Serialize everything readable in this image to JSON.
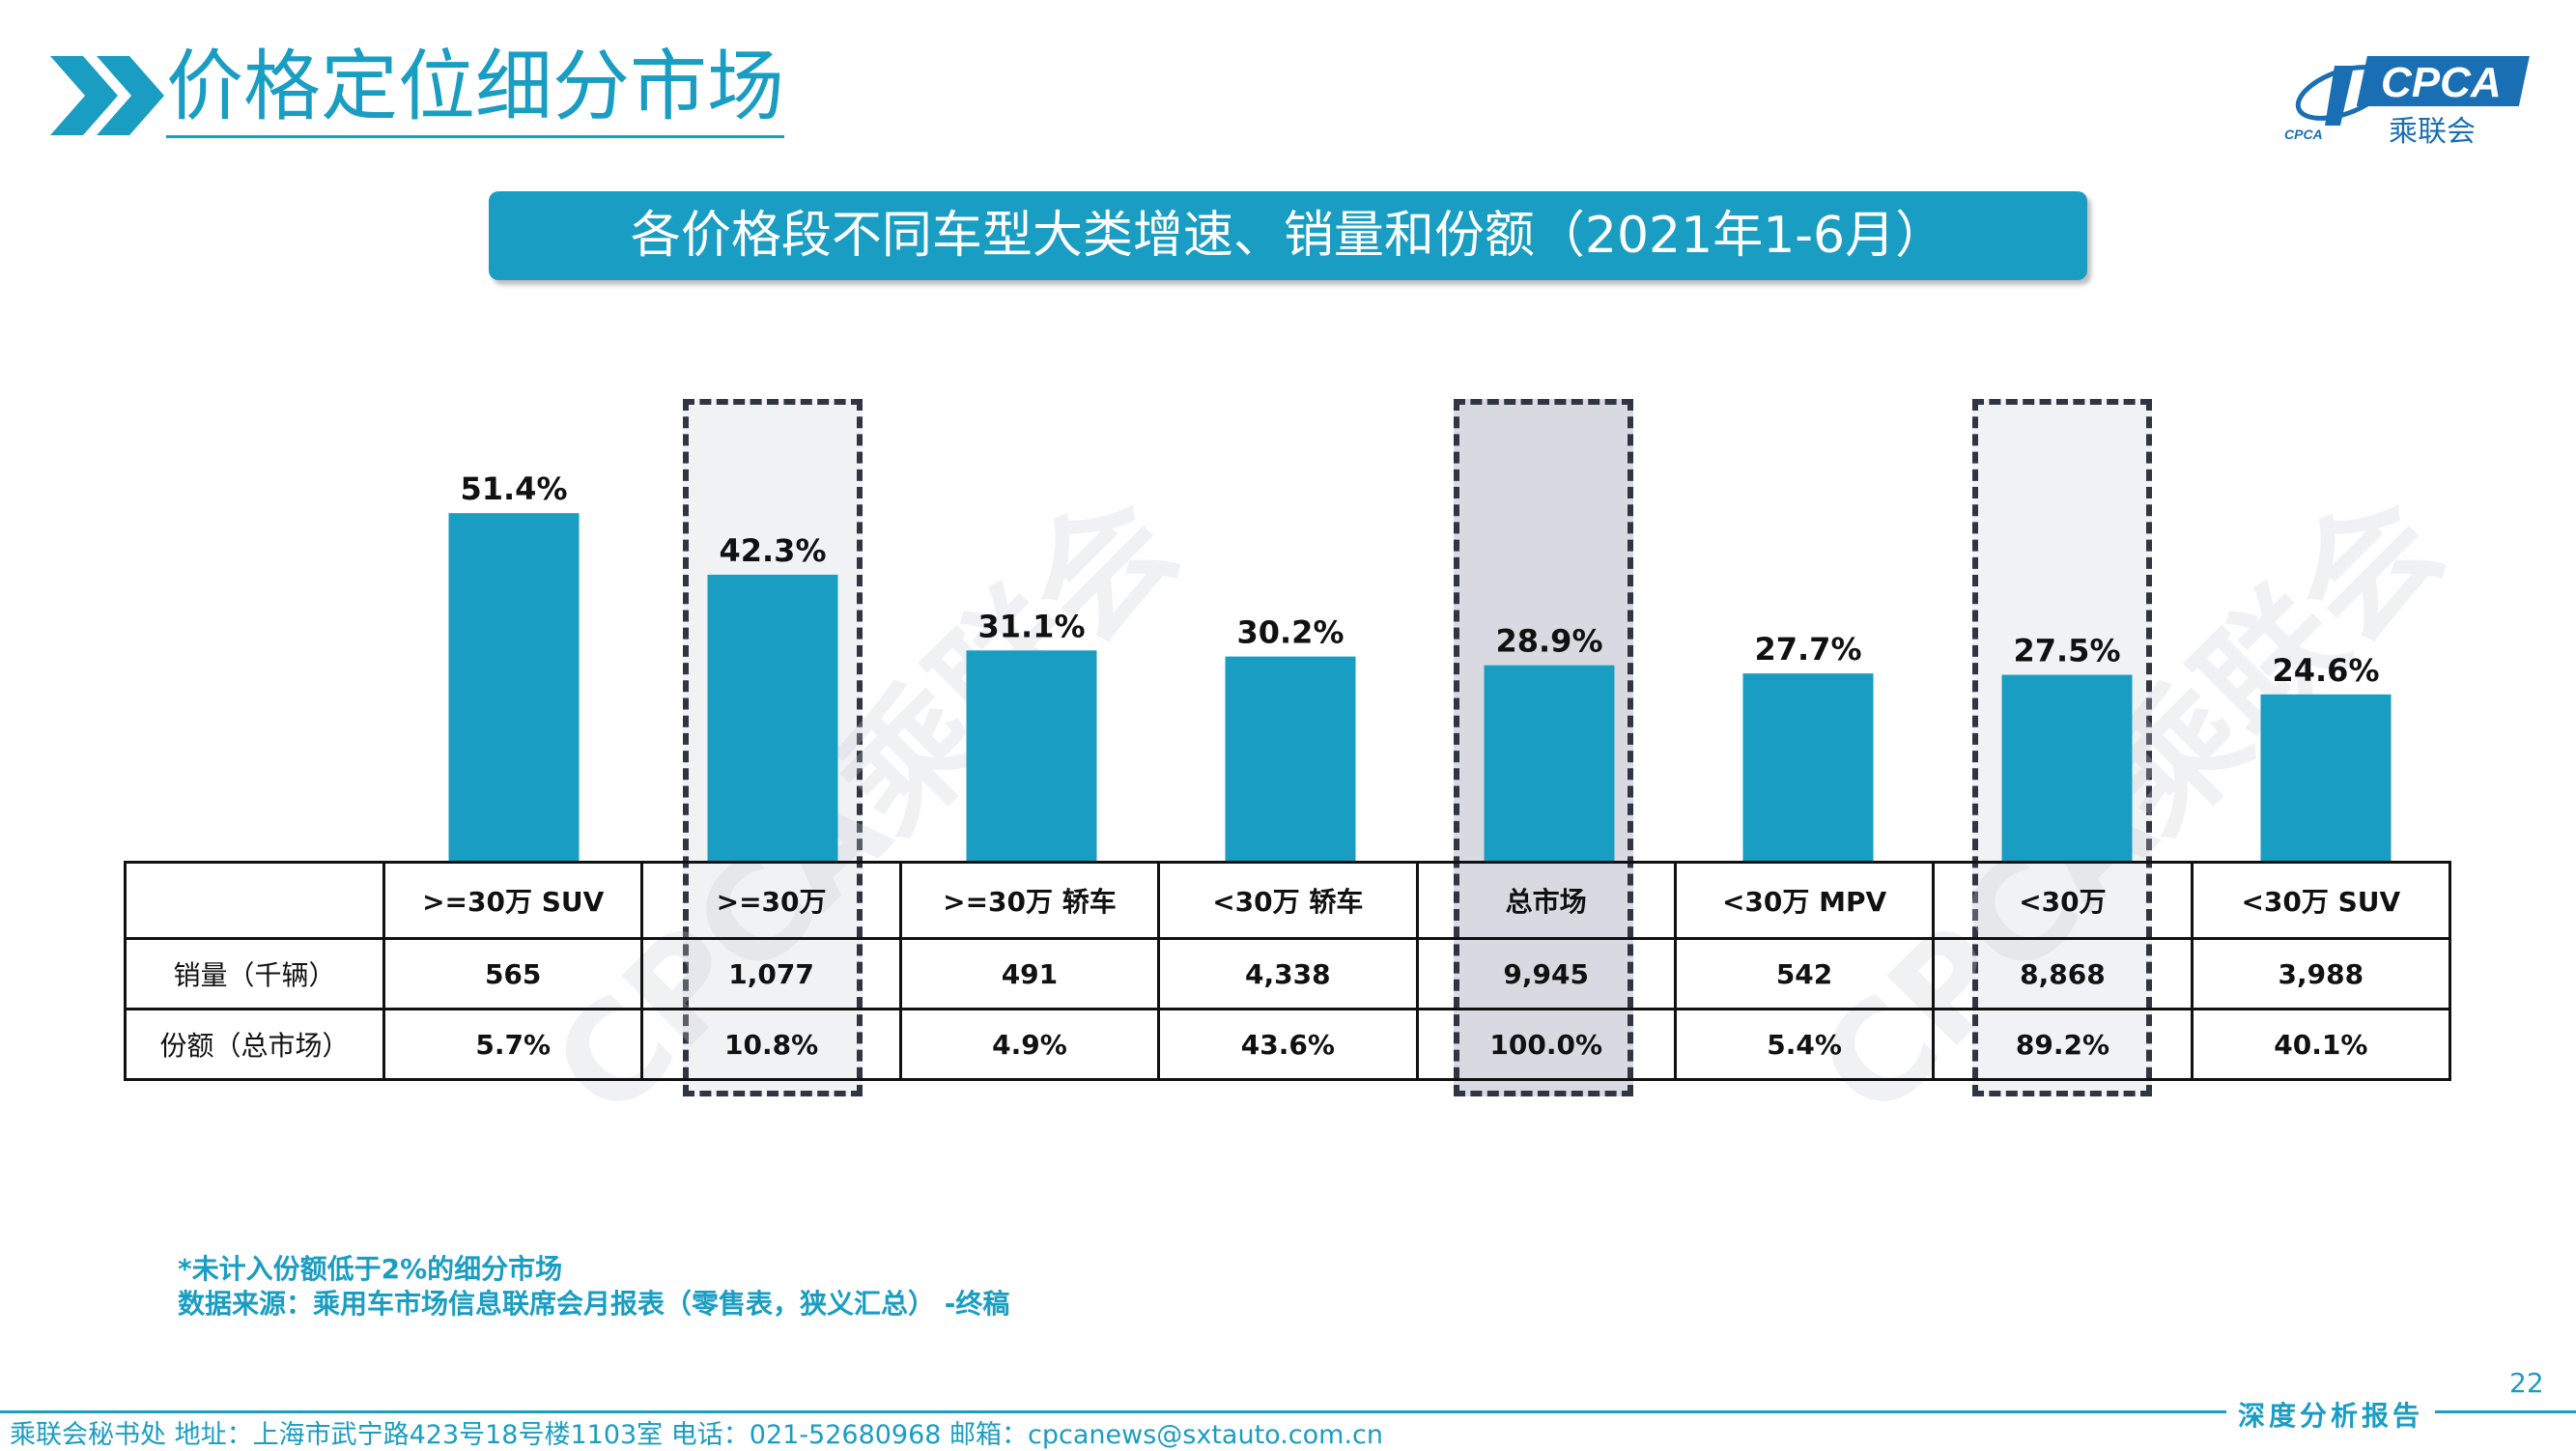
{
  "header": {
    "title": "价格定位细分市场",
    "logo_text": "CPCA",
    "logo_sub": "乘联会",
    "logo_small": "CPCA"
  },
  "banner": {
    "text": "各价格段不同车型大类增速、销量和份额（2021年1-6月）"
  },
  "watermark": "CPCA乘联会",
  "chart_data": {
    "type": "bar",
    "categories": [
      ">=30万 SUV",
      ">=30万",
      ">=30万 轿车",
      "<30万 轿车",
      "总市场",
      "<30万 MPV",
      "<30万",
      "<30万 SUV"
    ],
    "values": [
      51.4,
      42.3,
      31.1,
      30.2,
      28.9,
      27.7,
      27.5,
      24.6
    ],
    "data_labels": [
      "51.4%",
      "42.3%",
      "31.1%",
      "30.2%",
      "28.9%",
      "27.7%",
      "27.5%",
      "24.6%"
    ],
    "ylim": [
      0,
      60
    ],
    "grid": false,
    "bar_color": "#1a9dc2",
    "highlighted": [
      ">=30万",
      "总市场",
      "<30万"
    ]
  },
  "table": {
    "header_blank": "",
    "rows": [
      {
        "label": "销量（千辆）",
        "values": [
          "565",
          "1,077",
          "491",
          "4,338",
          "9,945",
          "542",
          "8,868",
          "3,988"
        ]
      },
      {
        "label": "份额（总市场）",
        "values": [
          "5.7%",
          "10.8%",
          "4.9%",
          "43.6%",
          "100.0%",
          "5.4%",
          "89.2%",
          "40.1%"
        ]
      }
    ]
  },
  "footnote": {
    "line1": "*未计入份额低于2%的细分市场",
    "line2": "数据来源：乘用车市场信息联席会月报表（零售表，狭义汇总） -终稿"
  },
  "footer": {
    "page_number": "22",
    "tag": "深度分析报告",
    "info": "乘联会秘书处   地址：上海市武宁路423号18号楼1103室  电话：021-52680968   邮箱：cpcanews@sxtauto.com.cn"
  },
  "colors": {
    "accent": "#1a9dc2",
    "dark": "#2f3542",
    "highlight_dark": "#d9d9e2",
    "highlight_light": "#f1f2f4"
  }
}
